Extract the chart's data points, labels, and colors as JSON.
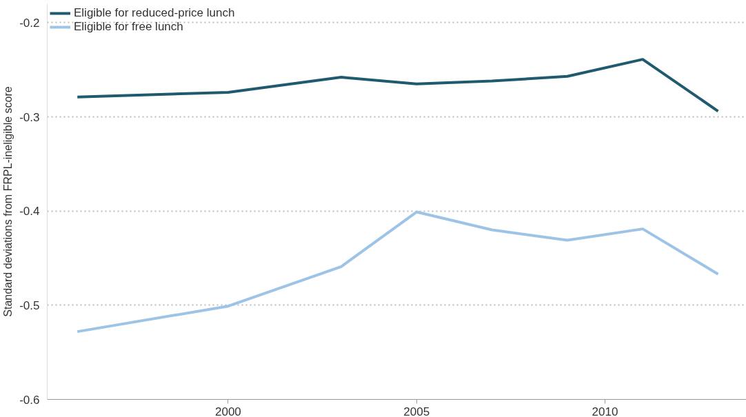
{
  "chart_data": {
    "type": "line",
    "ylabel": "Standard deviations from FRPL-ineligible score",
    "x": [
      1996,
      2000,
      2003,
      2005,
      2007,
      2009,
      2011,
      2013
    ],
    "series": [
      {
        "name": "Eligible for reduced-price lunch",
        "color": "#1f5a6e",
        "values": [
          -0.279,
          -0.274,
          -0.258,
          -0.265,
          -0.262,
          -0.257,
          -0.239,
          -0.294
        ]
      },
      {
        "name": "Eligible for free lunch",
        "color": "#9dc3e6",
        "values": [
          -0.528,
          -0.501,
          -0.459,
          -0.401,
          -0.42,
          -0.431,
          -0.419,
          -0.467
        ]
      }
    ],
    "xlim": [
      1995.2,
      2013.75
    ],
    "ylim": [
      -0.6,
      -0.18
    ],
    "xticks": [
      2000,
      2005,
      2010
    ],
    "yticks": [
      -0.6,
      -0.5,
      -0.4,
      -0.3,
      -0.2
    ],
    "grid": "y",
    "legend": "top left",
    "line_style": "solid",
    "marker": "none"
  }
}
